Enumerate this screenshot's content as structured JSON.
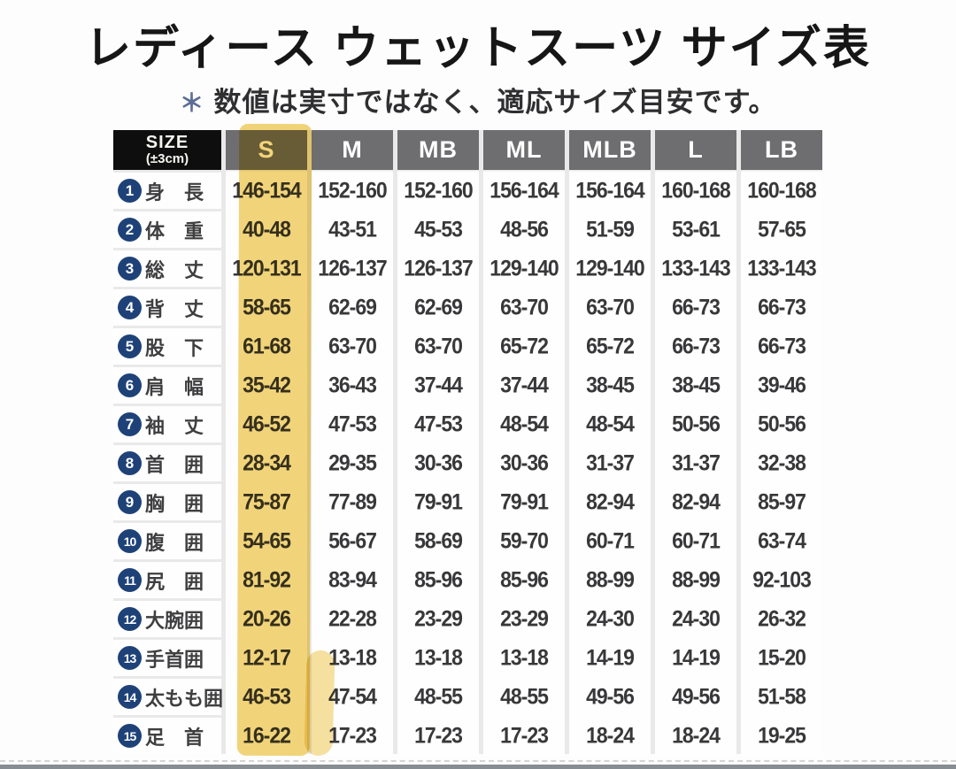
{
  "title": "レディース ウェットスーツ サイズ表",
  "subtitle": {
    "asterisk": "＊",
    "text": "数値は実寸ではなく、適応サイズ目安です。"
  },
  "table": {
    "size_header": {
      "line1": "SIZE",
      "line2": "(±3cm)"
    },
    "columns": [
      "S",
      "M",
      "MB",
      "ML",
      "MLB",
      "L",
      "LB"
    ],
    "highlighted_column": "S",
    "rows": [
      {
        "num": "1",
        "label": "身　長",
        "values": [
          "146-154",
          "152-160",
          "152-160",
          "156-164",
          "156-164",
          "160-168",
          "160-168"
        ]
      },
      {
        "num": "2",
        "label": "体　重",
        "values": [
          "40-48",
          "43-51",
          "45-53",
          "48-56",
          "51-59",
          "53-61",
          "57-65"
        ]
      },
      {
        "num": "3",
        "label": "総　丈",
        "values": [
          "120-131",
          "126-137",
          "126-137",
          "129-140",
          "129-140",
          "133-143",
          "133-143"
        ]
      },
      {
        "num": "4",
        "label": "背　丈",
        "values": [
          "58-65",
          "62-69",
          "62-69",
          "63-70",
          "63-70",
          "66-73",
          "66-73"
        ]
      },
      {
        "num": "5",
        "label": "股　下",
        "values": [
          "61-68",
          "63-70",
          "63-70",
          "65-72",
          "65-72",
          "66-73",
          "66-73"
        ]
      },
      {
        "num": "6",
        "label": "肩　幅",
        "values": [
          "35-42",
          "36-43",
          "37-44",
          "37-44",
          "38-45",
          "38-45",
          "39-46"
        ]
      },
      {
        "num": "7",
        "label": "袖　丈",
        "values": [
          "46-52",
          "47-53",
          "47-53",
          "48-54",
          "48-54",
          "50-56",
          "50-56"
        ]
      },
      {
        "num": "8",
        "label": "首　囲",
        "values": [
          "28-34",
          "29-35",
          "30-36",
          "30-36",
          "31-37",
          "31-37",
          "32-38"
        ]
      },
      {
        "num": "9",
        "label": "胸　囲",
        "values": [
          "75-87",
          "77-89",
          "79-91",
          "79-91",
          "82-94",
          "82-94",
          "85-97"
        ]
      },
      {
        "num": "10",
        "label": "腹　囲",
        "values": [
          "54-65",
          "56-67",
          "58-69",
          "59-70",
          "60-71",
          "60-71",
          "63-74"
        ]
      },
      {
        "num": "11",
        "label": "尻　囲",
        "values": [
          "81-92",
          "83-94",
          "85-96",
          "85-96",
          "88-99",
          "88-99",
          "92-103"
        ]
      },
      {
        "num": "12",
        "label": "大腕囲",
        "values": [
          "20-26",
          "22-28",
          "23-29",
          "23-29",
          "24-30",
          "24-30",
          "26-32"
        ]
      },
      {
        "num": "13",
        "label": "手首囲",
        "values": [
          "12-17",
          "13-18",
          "13-18",
          "13-18",
          "14-19",
          "14-19",
          "15-20"
        ]
      },
      {
        "num": "14",
        "label": "太もも囲",
        "values": [
          "46-53",
          "47-54",
          "48-55",
          "48-55",
          "49-56",
          "49-56",
          "51-58"
        ]
      },
      {
        "num": "15",
        "label": "足　首",
        "values": [
          "16-22",
          "17-23",
          "17-23",
          "17-23",
          "18-24",
          "18-24",
          "19-25"
        ]
      }
    ]
  },
  "colors": {
    "header_gray": "#6e6e70",
    "size_cell_black": "#0e0e0e",
    "highlight_yellow": "#efc954",
    "circle_blue": "#1e4278",
    "bottom_bar_gray": "#868d93"
  },
  "chart_data": {
    "type": "table",
    "title": "レディース ウェットスーツ サイズ表",
    "note": "＊数値は実寸ではなく、適応サイズ目安です。",
    "columns": [
      "SIZE(±3cm)",
      "S",
      "M",
      "MB",
      "ML",
      "MLB",
      "L",
      "LB"
    ],
    "highlighted_column": "S",
    "rows": [
      [
        "身長",
        "146-154",
        "152-160",
        "152-160",
        "156-164",
        "156-164",
        "160-168",
        "160-168"
      ],
      [
        "体重",
        "40-48",
        "43-51",
        "45-53",
        "48-56",
        "51-59",
        "53-61",
        "57-65"
      ],
      [
        "総丈",
        "120-131",
        "126-137",
        "126-137",
        "129-140",
        "129-140",
        "133-143",
        "133-143"
      ],
      [
        "背丈",
        "58-65",
        "62-69",
        "62-69",
        "63-70",
        "63-70",
        "66-73",
        "66-73"
      ],
      [
        "股下",
        "61-68",
        "63-70",
        "63-70",
        "65-72",
        "65-72",
        "66-73",
        "66-73"
      ],
      [
        "肩幅",
        "35-42",
        "36-43",
        "37-44",
        "37-44",
        "38-45",
        "38-45",
        "39-46"
      ],
      [
        "袖丈",
        "46-52",
        "47-53",
        "47-53",
        "48-54",
        "48-54",
        "50-56",
        "50-56"
      ],
      [
        "首囲",
        "28-34",
        "29-35",
        "30-36",
        "30-36",
        "31-37",
        "31-37",
        "32-38"
      ],
      [
        "胸囲",
        "75-87",
        "77-89",
        "79-91",
        "79-91",
        "82-94",
        "82-94",
        "85-97"
      ],
      [
        "腹囲",
        "54-65",
        "56-67",
        "58-69",
        "59-70",
        "60-71",
        "60-71",
        "63-74"
      ],
      [
        "尻囲",
        "81-92",
        "83-94",
        "85-96",
        "85-96",
        "88-99",
        "88-99",
        "92-103"
      ],
      [
        "大腕囲",
        "20-26",
        "22-28",
        "23-29",
        "23-29",
        "24-30",
        "24-30",
        "26-32"
      ],
      [
        "手首囲",
        "12-17",
        "13-18",
        "13-18",
        "13-18",
        "14-19",
        "14-19",
        "15-20"
      ],
      [
        "太もも囲",
        "46-53",
        "47-54",
        "48-55",
        "48-55",
        "49-56",
        "49-56",
        "51-58"
      ],
      [
        "足首",
        "16-22",
        "17-23",
        "17-23",
        "17-23",
        "18-24",
        "18-24",
        "19-25"
      ]
    ]
  }
}
